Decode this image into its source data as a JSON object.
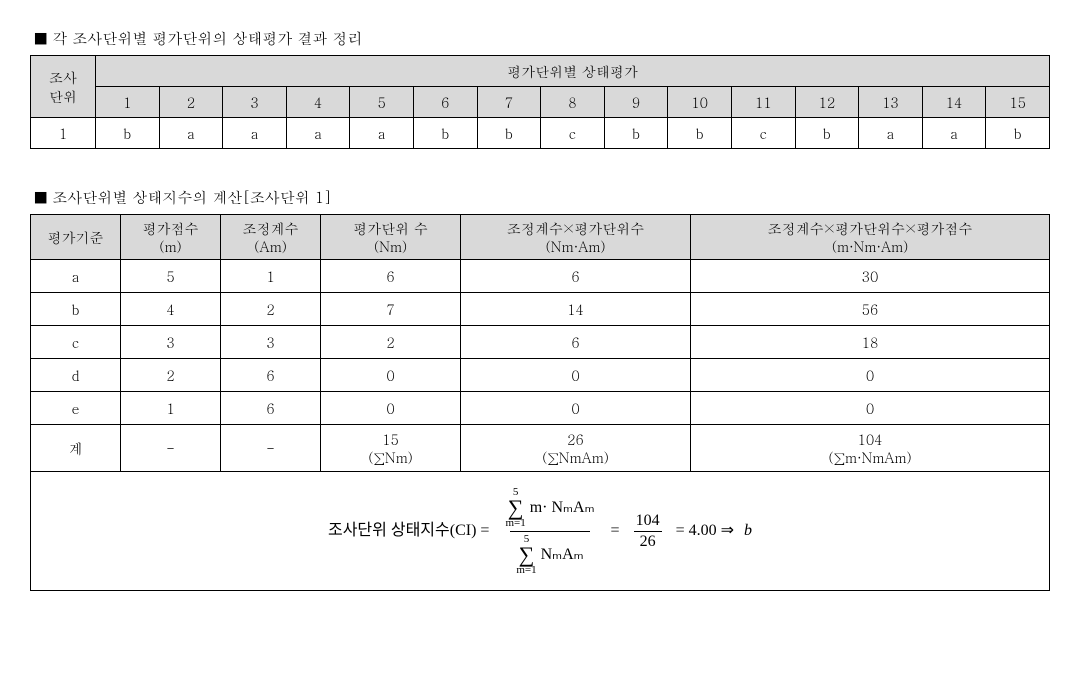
{
  "section1": {
    "title": "■ 각 조사단위별 평가단위의 상태평가 결과 정리",
    "corner_top": "조사",
    "corner_bot": "단위",
    "group_header": "평가단위별 상태평가",
    "cols": [
      "1",
      "2",
      "3",
      "4",
      "5",
      "6",
      "7",
      "8",
      "9",
      "10",
      "11",
      "12",
      "13",
      "14",
      "15"
    ],
    "row_label": "1",
    "row_vals": [
      "b",
      "a",
      "a",
      "a",
      "a",
      "b",
      "b",
      "c",
      "b",
      "b",
      "c",
      "b",
      "a",
      "a",
      "b"
    ]
  },
  "section2": {
    "title": "■ 조사단위별 상태지수의 계산[조사단위 1]",
    "headers": {
      "c1": "평가기준",
      "c2": "평가점수\n(m)",
      "c3": "조정계수\n(Am)",
      "c4": "평가단위 수\n(Nm)",
      "c5": "조정계수×평가단위수\n(Nm·Am)",
      "c6": "조정계수×평가단위수×평가점수\n(m·Nm·Am)"
    },
    "rows": [
      {
        "c1": "a",
        "c2": "5",
        "c3": "1",
        "c4": "6",
        "c5": "6",
        "c6": "30"
      },
      {
        "c1": "b",
        "c2": "4",
        "c3": "2",
        "c4": "7",
        "c5": "14",
        "c6": "56"
      },
      {
        "c1": "c",
        "c2": "3",
        "c3": "3",
        "c4": "2",
        "c5": "6",
        "c6": "18"
      },
      {
        "c1": "d",
        "c2": "2",
        "c3": "6",
        "c4": "0",
        "c5": "0",
        "c6": "0"
      },
      {
        "c1": "e",
        "c2": "1",
        "c3": "6",
        "c4": "0",
        "c5": "0",
        "c6": "0"
      }
    ],
    "sum": {
      "c1": "계",
      "c2": "-",
      "c3": "-",
      "c4": "15\n(∑Nm)",
      "c5": "26\n(∑NmAm)",
      "c6": "104\n(∑m·NmAm)"
    },
    "formula": {
      "label": "조사단위 상태지수(CI)  =",
      "sum_top": "5",
      "sum_bot": "m=1",
      "num_expr": "m· ",
      "nmam_sub": "NₘAₘ",
      "frac2_num": "104",
      "frac2_den": "26",
      "result": "=  4.00 ⇒ ",
      "grade": "b"
    }
  },
  "colors": {
    "header_bg": "#d9d9d9",
    "border": "#000000",
    "bg": "#ffffff"
  }
}
